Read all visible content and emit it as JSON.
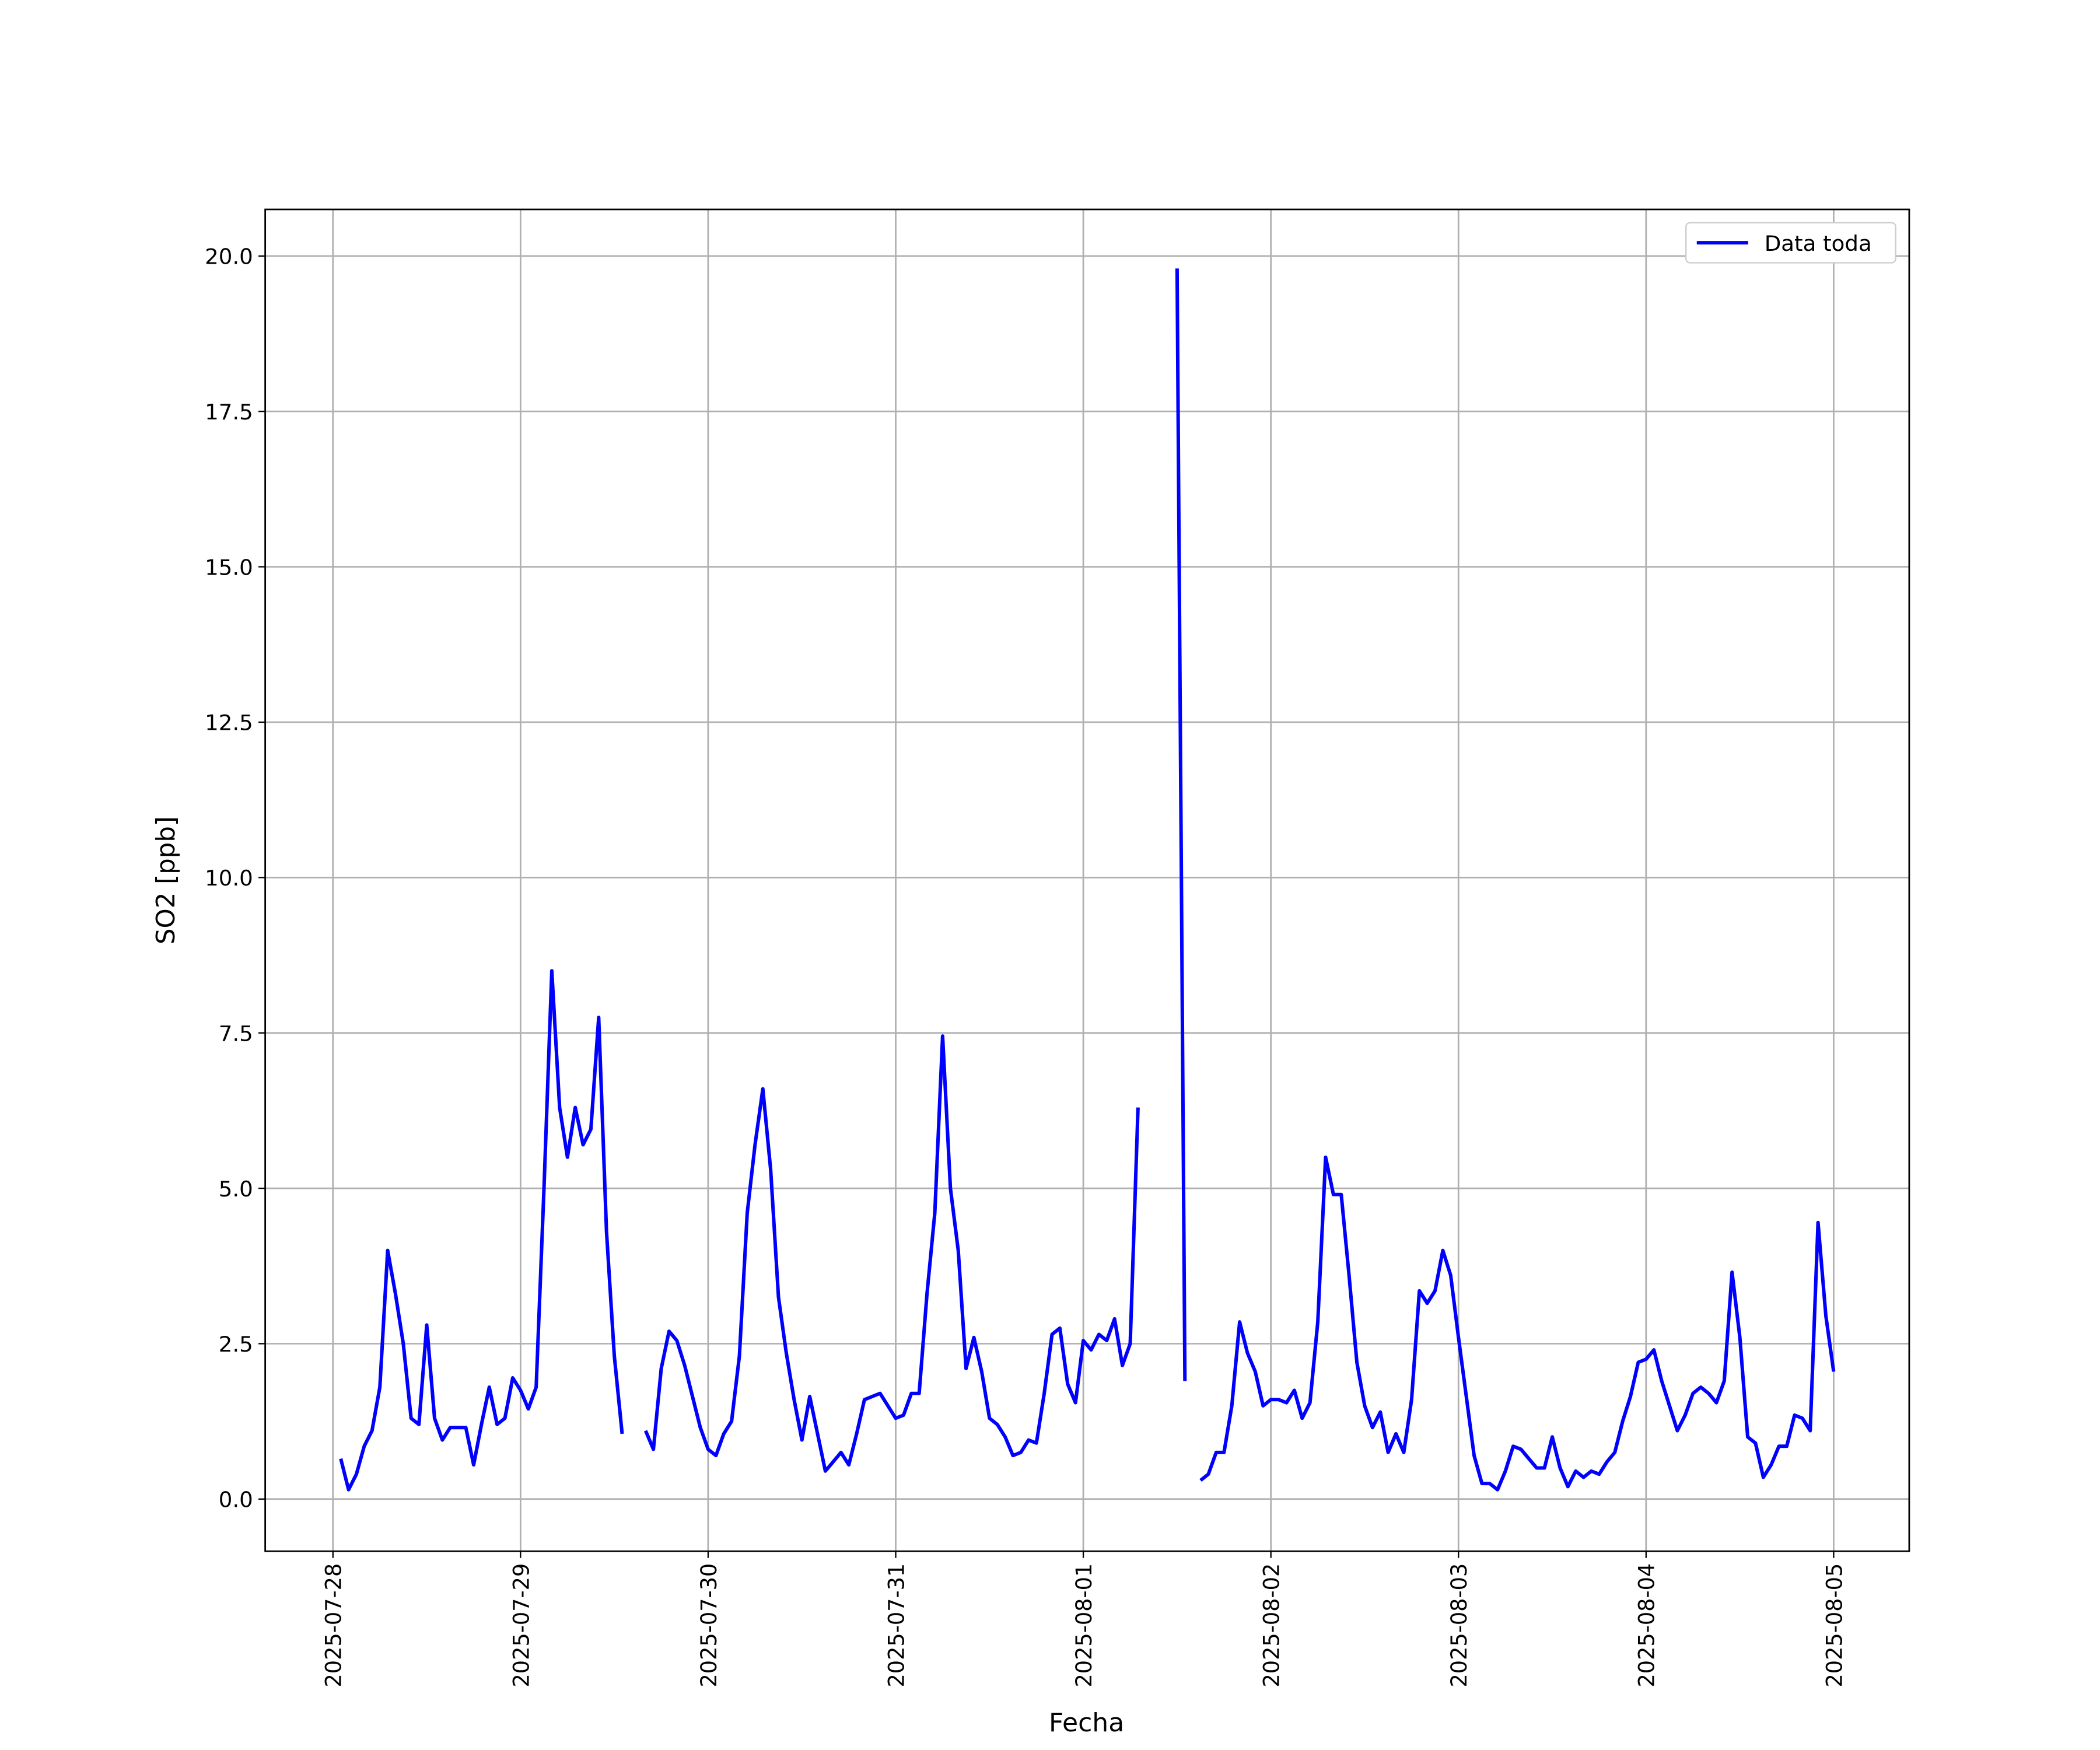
{
  "chart_data": {
    "type": "line",
    "y_label": "SO2 [ppb]",
    "x_label": "Fecha",
    "xlim": [
      "2025-07-27 15:20",
      "2025-08-05 09:40"
    ],
    "xticks": [
      "2025-07-28",
      "2025-07-29",
      "2025-07-30",
      "2025-07-31",
      "2025-08-01",
      "2025-08-02",
      "2025-08-03",
      "2025-08-04",
      "2025-08-05"
    ],
    "ylim": [
      -0.84,
      20.75
    ],
    "yticks": [
      {
        "value": 0,
        "label": "0.0"
      },
      {
        "value": 2.5,
        "label": "2.5"
      },
      {
        "value": 5,
        "label": "5.0"
      },
      {
        "value": 7.5,
        "label": "7.5"
      },
      {
        "value": 10,
        "label": "10.0"
      },
      {
        "value": 12.5,
        "label": "12.5"
      },
      {
        "value": 15,
        "label": "15.0"
      },
      {
        "value": 17.5,
        "label": "17.5"
      },
      {
        "value": 20,
        "label": "20.0"
      }
    ],
    "grid": true,
    "legend": "upper right",
    "x": [
      "2025-07-28 01:00",
      "2025-07-28 02:00",
      "2025-07-28 03:00",
      "2025-07-28 04:00",
      "2025-07-28 05:00",
      "2025-07-28 06:00",
      "2025-07-28 07:00",
      "2025-07-28 08:00",
      "2025-07-28 09:00",
      "2025-07-28 10:00",
      "2025-07-28 11:00",
      "2025-07-28 12:00",
      "2025-07-28 13:00",
      "2025-07-28 14:00",
      "2025-07-28 15:00",
      "2025-07-28 16:00",
      "2025-07-28 17:00",
      "2025-07-28 18:00",
      "2025-07-28 19:00",
      "2025-07-28 20:00",
      "2025-07-28 21:00",
      "2025-07-28 22:00",
      "2025-07-28 23:00",
      "2025-07-29 00:00",
      "2025-07-29 01:00",
      "2025-07-29 02:00",
      "2025-07-29 03:00",
      "2025-07-29 04:00",
      "2025-07-29 05:00",
      "2025-07-29 06:00",
      "2025-07-29 07:00",
      "2025-07-29 08:00",
      "2025-07-29 09:00",
      "2025-07-29 10:00",
      "2025-07-29 11:00",
      "2025-07-29 12:00",
      "2025-07-29 13:00",
      "2025-07-29 14:00",
      "2025-07-29 15:00",
      "2025-07-29 16:00",
      "2025-07-29 17:00",
      "2025-07-29 18:00",
      "2025-07-29 19:00",
      "2025-07-29 20:00",
      "2025-07-29 21:00",
      "2025-07-29 22:00",
      "2025-07-29 23:00",
      "2025-07-30 00:00",
      "2025-07-30 01:00",
      "2025-07-30 02:00",
      "2025-07-30 03:00",
      "2025-07-30 04:00",
      "2025-07-30 05:00",
      "2025-07-30 06:00",
      "2025-07-30 07:00",
      "2025-07-30 08:00",
      "2025-07-30 09:00",
      "2025-07-30 10:00",
      "2025-07-30 11:00",
      "2025-07-30 12:00",
      "2025-07-30 13:00",
      "2025-07-30 14:00",
      "2025-07-30 15:00",
      "2025-07-30 16:00",
      "2025-07-30 17:00",
      "2025-07-30 18:00",
      "2025-07-30 19:00",
      "2025-07-30 20:00",
      "2025-07-30 21:00",
      "2025-07-30 22:00",
      "2025-07-30 23:00",
      "2025-07-31 00:00",
      "2025-07-31 01:00",
      "2025-07-31 02:00",
      "2025-07-31 03:00",
      "2025-07-31 04:00",
      "2025-07-31 05:00",
      "2025-07-31 06:00",
      "2025-07-31 07:00",
      "2025-07-31 08:00",
      "2025-07-31 09:00",
      "2025-07-31 10:00",
      "2025-07-31 11:00",
      "2025-07-31 12:00",
      "2025-07-31 13:00",
      "2025-07-31 14:00",
      "2025-07-31 15:00",
      "2025-07-31 16:00",
      "2025-07-31 17:00",
      "2025-07-31 18:00",
      "2025-07-31 19:00",
      "2025-07-31 20:00",
      "2025-07-31 21:00",
      "2025-07-31 22:00",
      "2025-07-31 23:00",
      "2025-08-01 00:00",
      "2025-08-01 01:00",
      "2025-08-01 02:00",
      "2025-08-01 03:00",
      "2025-08-01 04:00",
      "2025-08-01 05:00",
      "2025-08-01 06:00",
      "2025-08-01 07:00",
      "2025-08-01 08:00",
      "2025-08-01 09:00",
      "2025-08-01 10:00",
      "2025-08-01 11:00",
      "2025-08-01 12:00",
      "2025-08-01 13:00",
      "2025-08-01 14:00",
      "2025-08-01 15:00",
      "2025-08-01 16:00",
      "2025-08-01 17:00",
      "2025-08-01 18:00",
      "2025-08-01 19:00",
      "2025-08-01 20:00",
      "2025-08-01 21:00",
      "2025-08-01 22:00",
      "2025-08-01 23:00",
      "2025-08-02 00:00",
      "2025-08-02 01:00",
      "2025-08-02 02:00",
      "2025-08-02 03:00",
      "2025-08-02 04:00",
      "2025-08-02 05:00",
      "2025-08-02 06:00",
      "2025-08-02 07:00",
      "2025-08-02 08:00",
      "2025-08-02 09:00",
      "2025-08-02 10:00",
      "2025-08-02 11:00",
      "2025-08-02 12:00",
      "2025-08-02 13:00",
      "2025-08-02 14:00",
      "2025-08-02 15:00",
      "2025-08-02 16:00",
      "2025-08-02 17:00",
      "2025-08-02 18:00",
      "2025-08-02 19:00",
      "2025-08-02 20:00",
      "2025-08-02 21:00",
      "2025-08-02 22:00",
      "2025-08-02 23:00",
      "2025-08-03 00:00",
      "2025-08-03 01:00",
      "2025-08-03 02:00",
      "2025-08-03 03:00",
      "2025-08-03 04:00",
      "2025-08-03 05:00",
      "2025-08-03 06:00",
      "2025-08-03 07:00",
      "2025-08-03 08:00",
      "2025-08-03 09:00",
      "2025-08-03 10:00",
      "2025-08-03 11:00",
      "2025-08-03 12:00",
      "2025-08-03 13:00",
      "2025-08-03 14:00",
      "2025-08-03 15:00",
      "2025-08-03 16:00",
      "2025-08-03 17:00",
      "2025-08-03 18:00",
      "2025-08-03 19:00",
      "2025-08-03 20:00",
      "2025-08-03 21:00",
      "2025-08-03 22:00",
      "2025-08-03 23:00",
      "2025-08-04 00:00",
      "2025-08-04 01:00",
      "2025-08-04 02:00",
      "2025-08-04 03:00",
      "2025-08-04 04:00",
      "2025-08-04 05:00",
      "2025-08-04 06:00",
      "2025-08-04 07:00",
      "2025-08-04 08:00",
      "2025-08-04 09:00",
      "2025-08-04 10:00",
      "2025-08-04 11:00",
      "2025-08-04 12:00",
      "2025-08-04 13:00",
      "2025-08-04 14:00",
      "2025-08-04 15:00",
      "2025-08-04 16:00",
      "2025-08-04 17:00",
      "2025-08-04 18:00",
      "2025-08-04 19:00",
      "2025-08-04 20:00",
      "2025-08-04 21:00",
      "2025-08-04 22:00",
      "2025-08-04 23:00",
      "2025-08-05 00:00"
    ],
    "series": [
      {
        "name": "Data toda",
        "color": "#0000ff",
        "values": [
          0.65,
          0.15,
          0.4,
          0.85,
          1.1,
          1.8,
          4.0,
          3.3,
          2.5,
          1.3,
          1.2,
          2.8,
          1.3,
          0.95,
          1.15,
          1.15,
          1.15,
          0.55,
          1.2,
          1.8,
          1.2,
          1.3,
          1.95,
          1.75,
          1.45,
          1.8,
          5.0,
          8.5,
          6.3,
          5.5,
          6.3,
          5.7,
          5.95,
          7.75,
          4.3,
          2.3,
          1.05,
          null,
          null,
          1.1,
          0.8,
          2.1,
          2.7,
          2.55,
          2.15,
          1.65,
          1.15,
          0.8,
          0.7,
          1.05,
          1.25,
          2.3,
          4.6,
          5.7,
          6.6,
          5.3,
          3.25,
          2.35,
          1.6,
          0.95,
          1.65,
          1.05,
          0.45,
          0.6,
          0.75,
          0.55,
          1.05,
          1.6,
          1.65,
          1.7,
          1.5,
          1.3,
          1.35,
          1.7,
          1.7,
          3.3,
          4.6,
          7.45,
          5.0,
          4.0,
          2.1,
          2.6,
          2.05,
          1.3,
          1.2,
          1.0,
          0.7,
          0.75,
          0.95,
          0.9,
          1.7,
          2.65,
          2.75,
          1.85,
          1.55,
          2.55,
          2.4,
          2.65,
          2.55,
          2.9,
          2.15,
          2.5,
          6.3,
          null,
          null,
          null,
          null,
          19.8,
          1.9,
          null,
          0.3,
          0.4,
          0.75,
          0.75,
          1.5,
          2.85,
          2.35,
          2.05,
          1.5,
          1.6,
          1.6,
          1.55,
          1.75,
          1.3,
          1.55,
          2.85,
          5.5,
          4.9,
          4.9,
          3.6,
          2.2,
          1.5,
          1.15,
          1.4,
          0.75,
          1.05,
          0.75,
          1.6,
          3.35,
          3.15,
          3.35,
          4.0,
          3.6,
          2.6,
          1.65,
          0.7,
          0.25,
          0.25,
          0.15,
          0.45,
          0.85,
          0.8,
          0.65,
          0.5,
          0.5,
          1.0,
          0.5,
          0.2,
          0.45,
          0.35,
          0.45,
          0.4,
          0.6,
          0.75,
          1.25,
          1.65,
          2.2,
          2.25,
          2.4,
          1.9,
          1.5,
          1.1,
          1.35,
          1.7,
          1.8,
          1.7,
          1.55,
          1.9,
          3.65,
          2.6,
          1.0,
          0.9,
          0.35,
          0.55,
          0.85,
          0.85,
          1.35,
          1.3,
          1.1,
          4.45,
          2.95,
          2.05
        ]
      }
    ]
  }
}
